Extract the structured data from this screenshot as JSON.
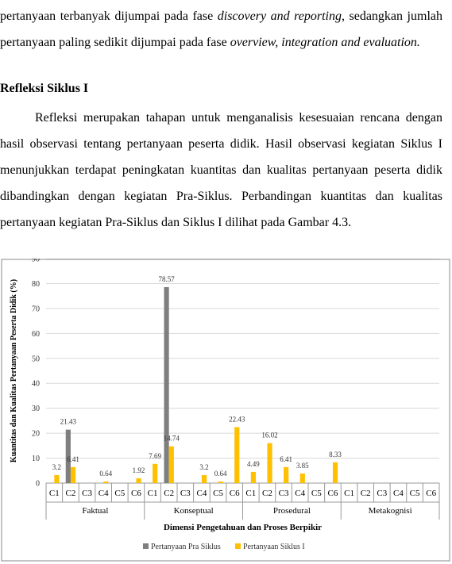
{
  "paragraphs": [
    {
      "runs": [
        {
          "text": "pertanyaan terbanyak dijumpai pada fase ",
          "italic": false
        },
        {
          "text": "discovery and reporting",
          "italic": true
        },
        {
          "text": ", sedangkan jumlah pertanyaan paling sedikit dijumpai pada fase ",
          "italic": false
        },
        {
          "text": "overview, integration and evaluation.",
          "italic": true
        }
      ]
    },
    {
      "runs": [
        {
          "text": "Refleksi merupakan tahapan untuk menganalisis kesesuaian rencana dengan hasil observasi tentang pertanyaan peserta didik. Hasil observasi kegiatan Siklus I menunjukkan terdapat peningkatan kuantitas dan kualitas pertanyaan peserta didik dibandingkan dengan kegiatan Pra-Siklus. Perbandingan kuantitas dan kualitas pertanyaan kegiatan Pra-Siklus dan Siklus I dilihat pada Gambar 4.3.",
          "italic": false
        }
      ]
    }
  ],
  "heading": "Refleksi Siklus I",
  "chart_data": {
    "type": "bar",
    "x_label": "Dimensi Pengetahuan dan Proses Berpikir",
    "y_label": "Kuantitas dan Kualitas Pertanyaan Peserta Didik (%)",
    "categories": [
      "C1",
      "C2",
      "C3",
      "C4",
      "C5",
      "C6",
      "C1",
      "C2",
      "C3",
      "C4",
      "C5",
      "C6",
      "C1",
      "C2",
      "C3",
      "C4",
      "C5",
      "C6",
      "C1",
      "C2",
      "C3",
      "C4",
      "C5",
      "C6"
    ],
    "groups": [
      "Faktual",
      "Konseptual",
      "Prosedural",
      "Metakognisi"
    ],
    "series": [
      {
        "name": "Pertanyaan Pra Siklus",
        "color": "#7f7f7f",
        "values": [
          null,
          21.43,
          null,
          null,
          null,
          null,
          null,
          78.57,
          null,
          null,
          null,
          null,
          null,
          null,
          null,
          null,
          null,
          null,
          null,
          null,
          null,
          null,
          null,
          null
        ]
      },
      {
        "name": "Pertanyaan Siklus I",
        "color": "#ffc000",
        "values": [
          3.2,
          6.41,
          null,
          0.64,
          null,
          1.92,
          7.69,
          14.74,
          null,
          3.2,
          0.64,
          22.43,
          4.49,
          16.02,
          6.41,
          3.85,
          null,
          8.33,
          null,
          null,
          null,
          null,
          null,
          null
        ]
      }
    ],
    "ylim": [
      0,
      90
    ],
    "yticks": [
      0,
      10,
      20,
      30,
      40,
      50,
      60,
      70,
      80,
      90
    ],
    "grid": true,
    "legend": "bottom"
  }
}
